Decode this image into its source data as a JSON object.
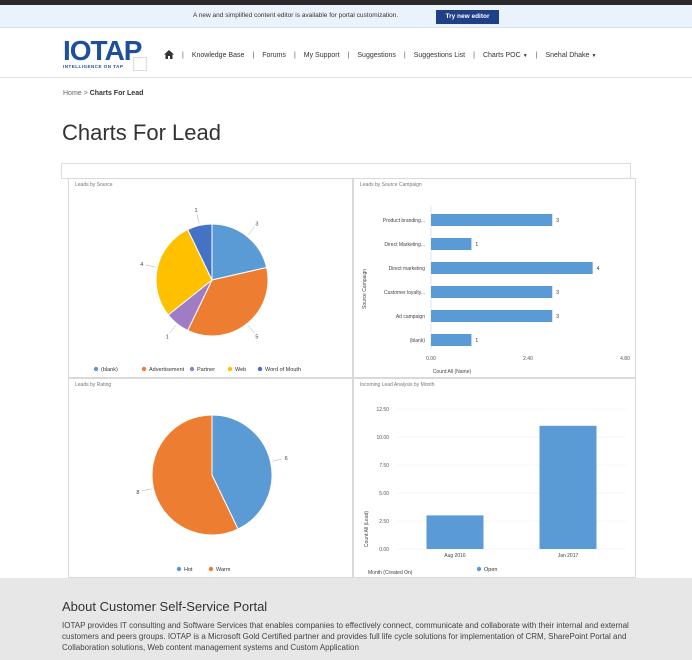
{
  "notice": {
    "text": "A new and simplified content editor is available for portal customization.",
    "button_label": "Try new editor"
  },
  "logo": {
    "text": "IOTAP",
    "tagline": "INTELLIGENCE ON TAP"
  },
  "nav": {
    "items": [
      "Knowledge Base",
      "Forums",
      "My Support",
      "Suggestions",
      "Suggestions List",
      "Charts POC",
      "Snehal Dhake"
    ]
  },
  "breadcrumb": {
    "home": "Home",
    "separator": ">",
    "current": "Charts For Lead"
  },
  "page_title": "Charts For Lead",
  "about": {
    "title": "About Customer Self-Service Portal",
    "text": "IOTAP provides IT consulting and Software Services that enables companies to effectively connect, communicate and collaborate with their internal and external customers and peers groups. IOTAP is a Microsoft Gold Certified partner and provides full life cycle solutions for implementation of CRM, SharePoint Portal and Collaboration solutions, Web content management systems and Custom Application"
  },
  "colors": {
    "blue": "#5b9bd5",
    "orange": "#ed7d31",
    "purple": "#a07cc5",
    "yellow": "#ffc000",
    "darkblue": "#4472c4",
    "nav_button": "#1f3f87"
  },
  "chart_data": [
    {
      "type": "pie",
      "title": "Leads by Source",
      "categories": [
        "(blank)",
        "Advertisement",
        "Partner",
        "Web",
        "Word of Mouth"
      ],
      "values": [
        3,
        5,
        1,
        4,
        1
      ],
      "colors": [
        "#5b9bd5",
        "#ed7d31",
        "#a07cc5",
        "#ffc000",
        "#4472c4"
      ],
      "legend": "bottom"
    },
    {
      "type": "bar",
      "orientation": "horizontal",
      "title": "Leads by Source Campaign",
      "categories": [
        "Product branding...",
        "Direct Marketing...",
        "Direct marketing",
        "Customer loyalty...",
        "Ad campaign",
        "(blank)"
      ],
      "values": [
        3,
        1,
        4,
        3,
        3,
        1
      ],
      "xlabel": "Count:All (Name)",
      "ylabel": "Source Campaign",
      "xticks": [
        "0.00",
        "2.40",
        "4.80"
      ],
      "xlim": [
        0,
        4.8
      ],
      "color": "#5b9bd5"
    },
    {
      "type": "pie",
      "title": "Leads by Rating",
      "categories": [
        "Hot",
        "Warm"
      ],
      "values": [
        6,
        8
      ],
      "colors": [
        "#5b9bd5",
        "#ed7d31"
      ],
      "legend": "bottom"
    },
    {
      "type": "bar",
      "title": "Incoming Lead Analysis by Month",
      "categories": [
        "Aug 2016",
        "Jan 2017"
      ],
      "series": [
        {
          "name": "Open",
          "values": [
            3,
            11
          ]
        }
      ],
      "xlabel": "Month (Created On)",
      "ylabel": "Count:All (Lead)",
      "yticks": [
        "0.00",
        "2.50",
        "5.00",
        "7.50",
        "10.00",
        "12.50"
      ],
      "ylim": [
        0,
        12.5
      ],
      "color": "#5b9bd5",
      "legend": "bottom"
    }
  ]
}
